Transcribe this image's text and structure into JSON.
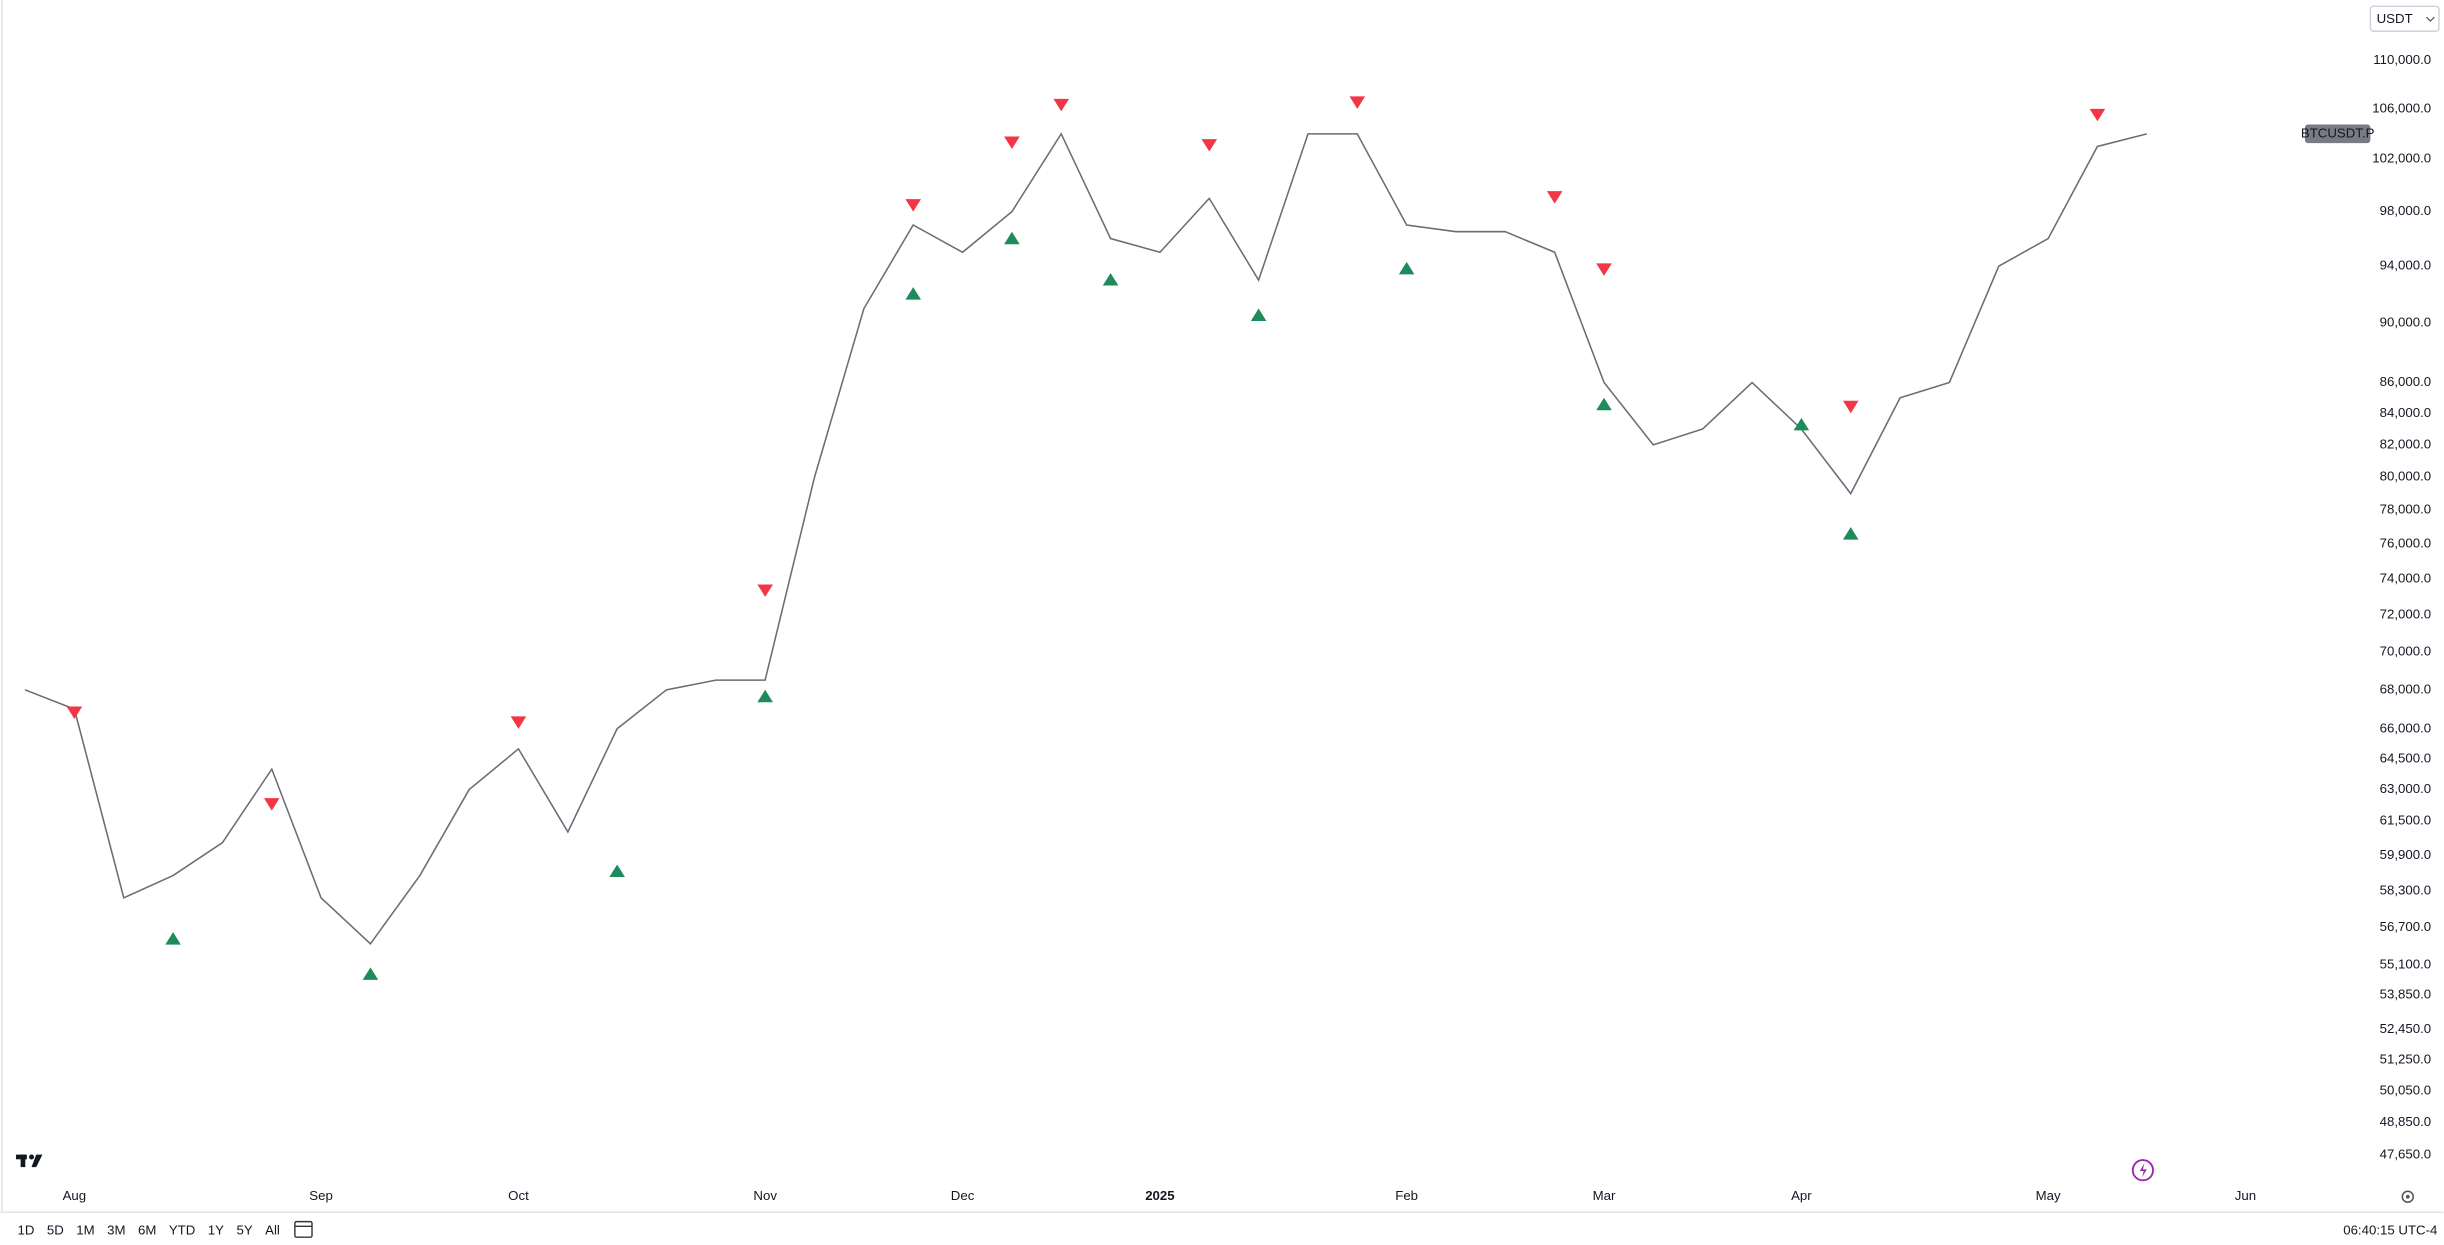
{
  "toolbar": {
    "currency": "USDT",
    "ranges": [
      "1D",
      "5D",
      "1M",
      "3M",
      "6M",
      "YTD",
      "1Y",
      "5Y",
      "All"
    ],
    "clock": "06:40:15 UTC-4"
  },
  "chart_data": {
    "type": "line",
    "symbol": "BTCUSDT.P",
    "log_scale": true,
    "categories": [
      null,
      "Aug",
      null,
      null,
      null,
      null,
      "Sep",
      null,
      null,
      null,
      "Oct",
      null,
      null,
      null,
      null,
      "Nov",
      null,
      null,
      null,
      "Dec",
      null,
      null,
      null,
      "2025",
      null,
      null,
      null,
      null,
      "Feb",
      null,
      null,
      null,
      "Mar",
      null,
      null,
      null,
      "Apr",
      null,
      null,
      null,
      null,
      "May",
      null,
      null,
      null,
      "Jun",
      null,
      null
    ],
    "series": [
      {
        "color": "#6a6d78",
        "values": [
          68000,
          67000,
          58000,
          59000,
          60500,
          64000,
          58000,
          56000,
          59000,
          63000,
          65000,
          61000,
          66000,
          68000,
          68500,
          68500,
          80000,
          91000,
          97000,
          95000,
          98000,
          104000,
          96000,
          95000,
          99000,
          93000,
          104000,
          104000,
          97000,
          96500,
          96500,
          95000,
          86000,
          82000,
          83000,
          86000,
          83000,
          79000,
          85000,
          86000,
          94000,
          96000,
          103000,
          104000,
          null,
          null,
          null,
          null
        ]
      },
      {
        "color": "#f23645",
        "marker": "triangle-down",
        "values": [
          null,
          66500,
          null,
          null,
          null,
          62000,
          null,
          null,
          null,
          null,
          66000,
          null,
          null,
          null,
          null,
          73000,
          null,
          null,
          98000,
          null,
          102800,
          105800,
          null,
          null,
          102600,
          null,
          null,
          106000,
          null,
          null,
          null,
          98600,
          93300,
          null,
          null,
          null,
          null,
          84000,
          null,
          null,
          null,
          null,
          105000,
          null,
          null,
          null,
          null,
          null
        ]
      },
      {
        "color": "#1e8c5a",
        "marker": "triangle-up",
        "values": [
          null,
          null,
          null,
          56500,
          null,
          null,
          null,
          55000,
          null,
          null,
          null,
          null,
          59500,
          null,
          null,
          68000,
          null,
          null,
          92500,
          null,
          96500,
          null,
          93500,
          null,
          null,
          91000,
          null,
          null,
          94300,
          null,
          null,
          null,
          85000,
          null,
          null,
          null,
          83700,
          77000,
          null,
          null,
          null,
          null,
          null,
          null,
          null,
          null,
          null,
          null
        ]
      }
    ],
    "ylim": [
      46600,
      115200
    ],
    "yticks": [
      {
        "value": 110000,
        "label": "110,000.0"
      },
      {
        "value": 106000,
        "label": "106,000.0"
      },
      {
        "value": 102000,
        "label": "102,000.0"
      },
      {
        "value": 98000,
        "label": "98,000.0"
      },
      {
        "value": 94000,
        "label": "94,000.0"
      },
      {
        "value": 90000,
        "label": "90,000.0"
      },
      {
        "value": 86000,
        "label": "86,000.0"
      },
      {
        "value": 84000,
        "label": "84,000.0"
      },
      {
        "value": 82000,
        "label": "82,000.0"
      },
      {
        "value": 80000,
        "label": "80,000.0"
      },
      {
        "value": 78000,
        "label": "78,000.0"
      },
      {
        "value": 76000,
        "label": "76,000.0"
      },
      {
        "value": 74000,
        "label": "74,000.0"
      },
      {
        "value": 72000,
        "label": "72,000.0"
      },
      {
        "value": 70000,
        "label": "70,000.0"
      },
      {
        "value": 68000,
        "label": "68,000.0"
      },
      {
        "value": 66000,
        "label": "66,000.0"
      },
      {
        "value": 64500,
        "label": "64,500.0"
      },
      {
        "value": 63000,
        "label": "63,000.0"
      },
      {
        "value": 61500,
        "label": "61,500.0"
      },
      {
        "value": 59900,
        "label": "59,900.0"
      },
      {
        "value": 58300,
        "label": "58,300.0"
      },
      {
        "value": 56700,
        "label": "56,700.0"
      },
      {
        "value": 55100,
        "label": "55,100.0"
      },
      {
        "value": 53850,
        "label": "53,850.0"
      },
      {
        "value": 52450,
        "label": "52,450.0"
      },
      {
        "value": 51250,
        "label": "51,250.0"
      },
      {
        "value": 50050,
        "label": "50,050.0"
      },
      {
        "value": 48850,
        "label": "48,850.0"
      },
      {
        "value": 47650,
        "label": "47,650.0"
      }
    ]
  }
}
